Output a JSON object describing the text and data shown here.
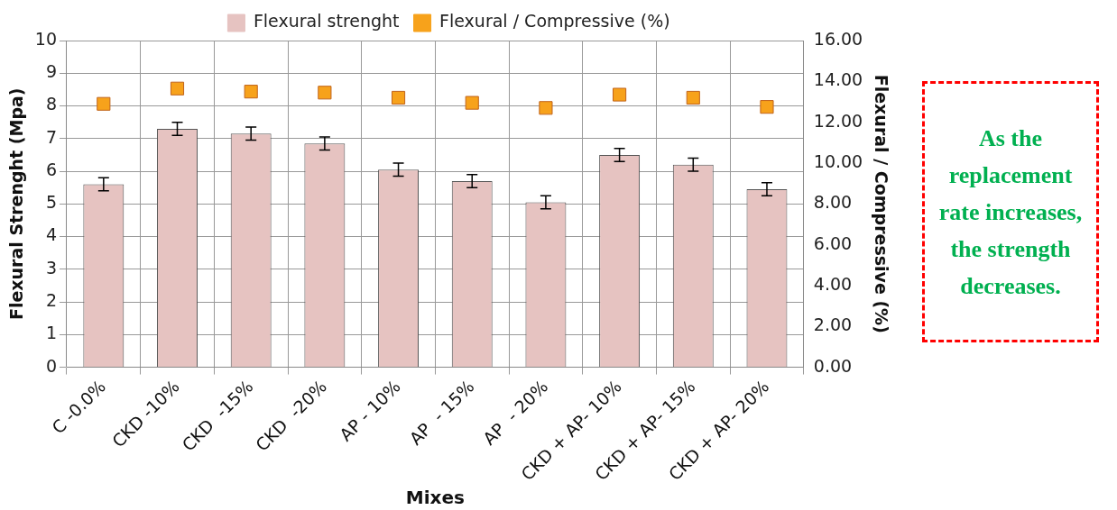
{
  "chart_data": {
    "type": "bar",
    "xlabel": "Mixes",
    "ylabel": "Flexural Strenght (Mpa)",
    "y2label": "Flexural / Compressive (%)",
    "categories": [
      "C -0.0%",
      "CKD -10%",
      "CKD  -15%",
      "CKD  -20%",
      "AP - 10%",
      "AP  - 15%",
      "AP  - 20%",
      "CKD + AP- 10%",
      "CKD + AP- 15%",
      "CKD + AP- 20%"
    ],
    "series": [
      {
        "name": "Flexural strenght",
        "color": "#e6c3c1",
        "values": [
          5.6,
          7.3,
          7.15,
          6.85,
          6.05,
          5.7,
          5.05,
          6.5,
          6.2,
          5.45
        ],
        "errors": [
          0.2,
          0.2,
          0.2,
          0.2,
          0.2,
          0.2,
          0.2,
          0.2,
          0.2,
          0.2
        ]
      },
      {
        "name": "Flexural / Compressive (%)",
        "type": "scatter",
        "axis": "y2",
        "marker": "square",
        "color": "#f7a21b",
        "x": [
          "C -0.0%",
          "CKD -10%",
          "CKD  -15%",
          "CKD  -20%",
          "AP - 10%",
          "AP  - 15%",
          "AP  - 20%",
          "CKD + AP- 10%",
          "CKD + AP- 15%",
          "CKD + AP- 20%"
        ],
        "values": [
          12.9,
          13.65,
          13.5,
          13.45,
          13.2,
          12.95,
          12.7,
          13.35,
          13.2,
          12.75
        ]
      }
    ],
    "ylim": [
      0,
      10
    ],
    "yticks": [
      0,
      1,
      2,
      3,
      4,
      5,
      6,
      7,
      8,
      9,
      10
    ],
    "y2lim": [
      0,
      16
    ],
    "y2ticks": [
      {
        "value": 0,
        "label": "0.00"
      },
      {
        "value": 2,
        "label": "2.00"
      },
      {
        "value": 4,
        "label": "4.00"
      },
      {
        "value": 6,
        "label": "6.00"
      },
      {
        "value": 8,
        "label": "8.00"
      },
      {
        "value": 10,
        "label": "10.00"
      },
      {
        "value": 12,
        "label": "12.00"
      },
      {
        "value": 14,
        "label": "14.00"
      },
      {
        "value": 16,
        "label": "16.00"
      }
    ],
    "grid": true,
    "legend": "top",
    "annotations": [
      "As the replacement rate increases, the strength decreases."
    ]
  }
}
